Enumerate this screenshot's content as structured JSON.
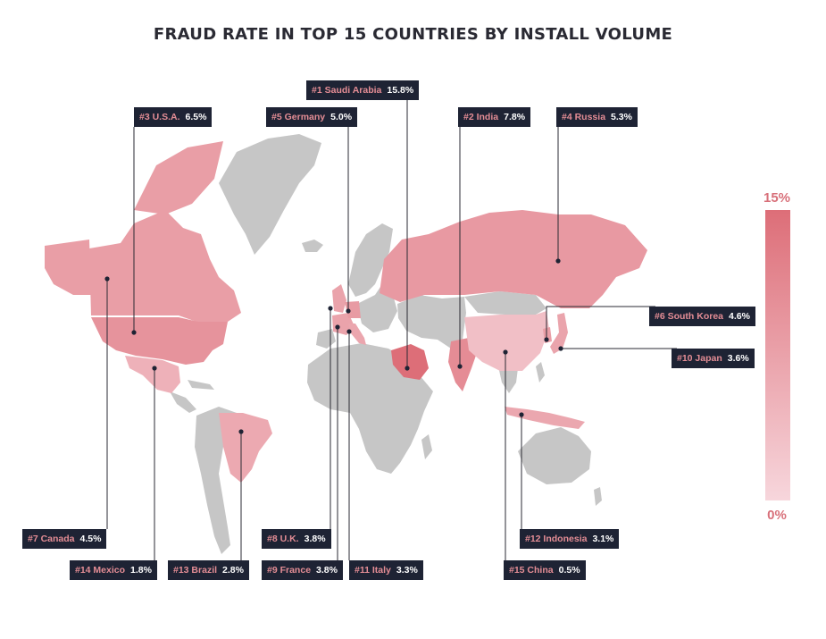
{
  "title": "FRAUD RATE IN TOP 15 COUNTRIES BY INSTALL VOLUME",
  "colors": {
    "land": "#c6c6c6",
    "low": "#f7d6dc",
    "high": "#dd6e78",
    "label_bg": "#1e2334",
    "label_name": "#e48d95",
    "label_value": "#ffffff"
  },
  "legend": {
    "max_label": "15%",
    "min_label": "0%",
    "max_value": 15,
    "min_value": 0
  },
  "countries": [
    {
      "key": "saudi",
      "label": "#1 Saudi Arabia",
      "pct": "15.8%",
      "rate": 15.8
    },
    {
      "key": "india",
      "label": "#2 India",
      "pct": "7.8%",
      "rate": 7.8
    },
    {
      "key": "usa",
      "label": "#3 U.S.A.",
      "pct": "6.5%",
      "rate": 6.5
    },
    {
      "key": "russia",
      "label": "#4 Russia",
      "pct": "5.3%",
      "rate": 5.3
    },
    {
      "key": "germany",
      "label": "#5 Germany",
      "pct": "5.0%",
      "rate": 5.0
    },
    {
      "key": "korea",
      "label": "#6 South Korea",
      "pct": "4.6%",
      "rate": 4.6
    },
    {
      "key": "canada",
      "label": "#7 Canada",
      "pct": "4.5%",
      "rate": 4.5
    },
    {
      "key": "uk",
      "label": "#8 U.K.",
      "pct": "3.8%",
      "rate": 3.8
    },
    {
      "key": "france",
      "label": "#9 France",
      "pct": "3.8%",
      "rate": 3.8
    },
    {
      "key": "japan",
      "label": "#10 Japan",
      "pct": "3.6%",
      "rate": 3.6
    },
    {
      "key": "italy",
      "label": "#11 Italy",
      "pct": "3.3%",
      "rate": 3.3
    },
    {
      "key": "indonesia",
      "label": "#12 Indonesia",
      "pct": "3.1%",
      "rate": 3.1
    },
    {
      "key": "brazil",
      "label": "#13 Brazil",
      "pct": "2.8%",
      "rate": 2.8
    },
    {
      "key": "mexico",
      "label": "#14 Mexico",
      "pct": "1.8%",
      "rate": 1.8
    },
    {
      "key": "china",
      "label": "#15 China",
      "pct": "0.5%",
      "rate": 0.5
    }
  ]
}
